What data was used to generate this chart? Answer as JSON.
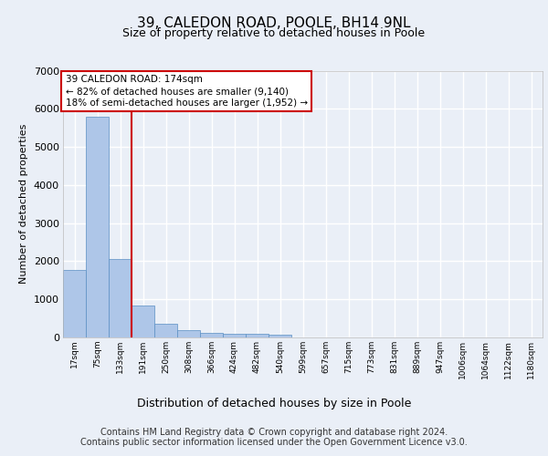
{
  "title": "39, CALEDON ROAD, POOLE, BH14 9NL",
  "subtitle": "Size of property relative to detached houses in Poole",
  "xlabel": "Distribution of detached houses by size in Poole",
  "ylabel": "Number of detached properties",
  "bar_labels": [
    "17sqm",
    "75sqm",
    "133sqm",
    "191sqm",
    "250sqm",
    "308sqm",
    "366sqm",
    "424sqm",
    "482sqm",
    "540sqm",
    "599sqm",
    "657sqm",
    "715sqm",
    "773sqm",
    "831sqm",
    "889sqm",
    "947sqm",
    "1006sqm",
    "1064sqm",
    "1122sqm",
    "1180sqm"
  ],
  "bar_values": [
    1780,
    5800,
    2070,
    830,
    350,
    195,
    120,
    105,
    95,
    75,
    0,
    0,
    0,
    0,
    0,
    0,
    0,
    0,
    0,
    0,
    0
  ],
  "bar_color": "#aec6e8",
  "bar_edge_color": "#5a8fc3",
  "vline_color": "#cc0000",
  "annotation_text": "39 CALEDON ROAD: 174sqm\n← 82% of detached houses are smaller (9,140)\n18% of semi-detached houses are larger (1,952) →",
  "annotation_box_color": "#cc0000",
  "ylim": [
    0,
    7000
  ],
  "yticks": [
    0,
    1000,
    2000,
    3000,
    4000,
    5000,
    6000,
    7000
  ],
  "footer_line1": "Contains HM Land Registry data © Crown copyright and database right 2024.",
  "footer_line2": "Contains public sector information licensed under the Open Government Licence v3.0.",
  "bg_color": "#eaeff7",
  "plot_bg_color": "#eaeff7",
  "grid_color": "#ffffff",
  "title_fontsize": 11,
  "subtitle_fontsize": 9,
  "footer_fontsize": 7
}
